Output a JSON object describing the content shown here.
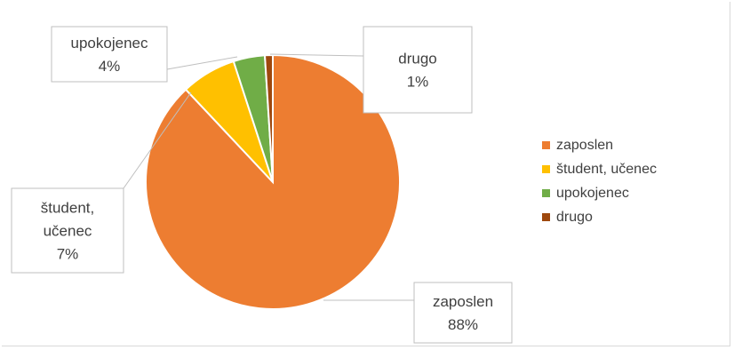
{
  "chart_data": {
    "type": "pie",
    "title": "",
    "categories": [
      "zaposlen",
      "študent, učenec",
      "upokojenec",
      "drugo"
    ],
    "values": [
      88,
      7,
      4,
      1
    ],
    "data_labels": [
      {
        "category": "zaposlen",
        "value_text": "88%"
      },
      {
        "category": "študent, učenec",
        "value_text": "7%"
      },
      {
        "category": "upokojenec",
        "value_text": "4%"
      },
      {
        "category": "drugo",
        "value_text": "1%"
      }
    ],
    "colors": [
      "#ED7D31",
      "#FFC000",
      "#70AD47",
      "#9E480E"
    ],
    "start_angle_deg": 0,
    "direction": "clockwise",
    "legend": {
      "position": "right",
      "entries": [
        "zaposlen",
        "študent, učenec",
        "upokojenec",
        "drugo"
      ]
    }
  }
}
